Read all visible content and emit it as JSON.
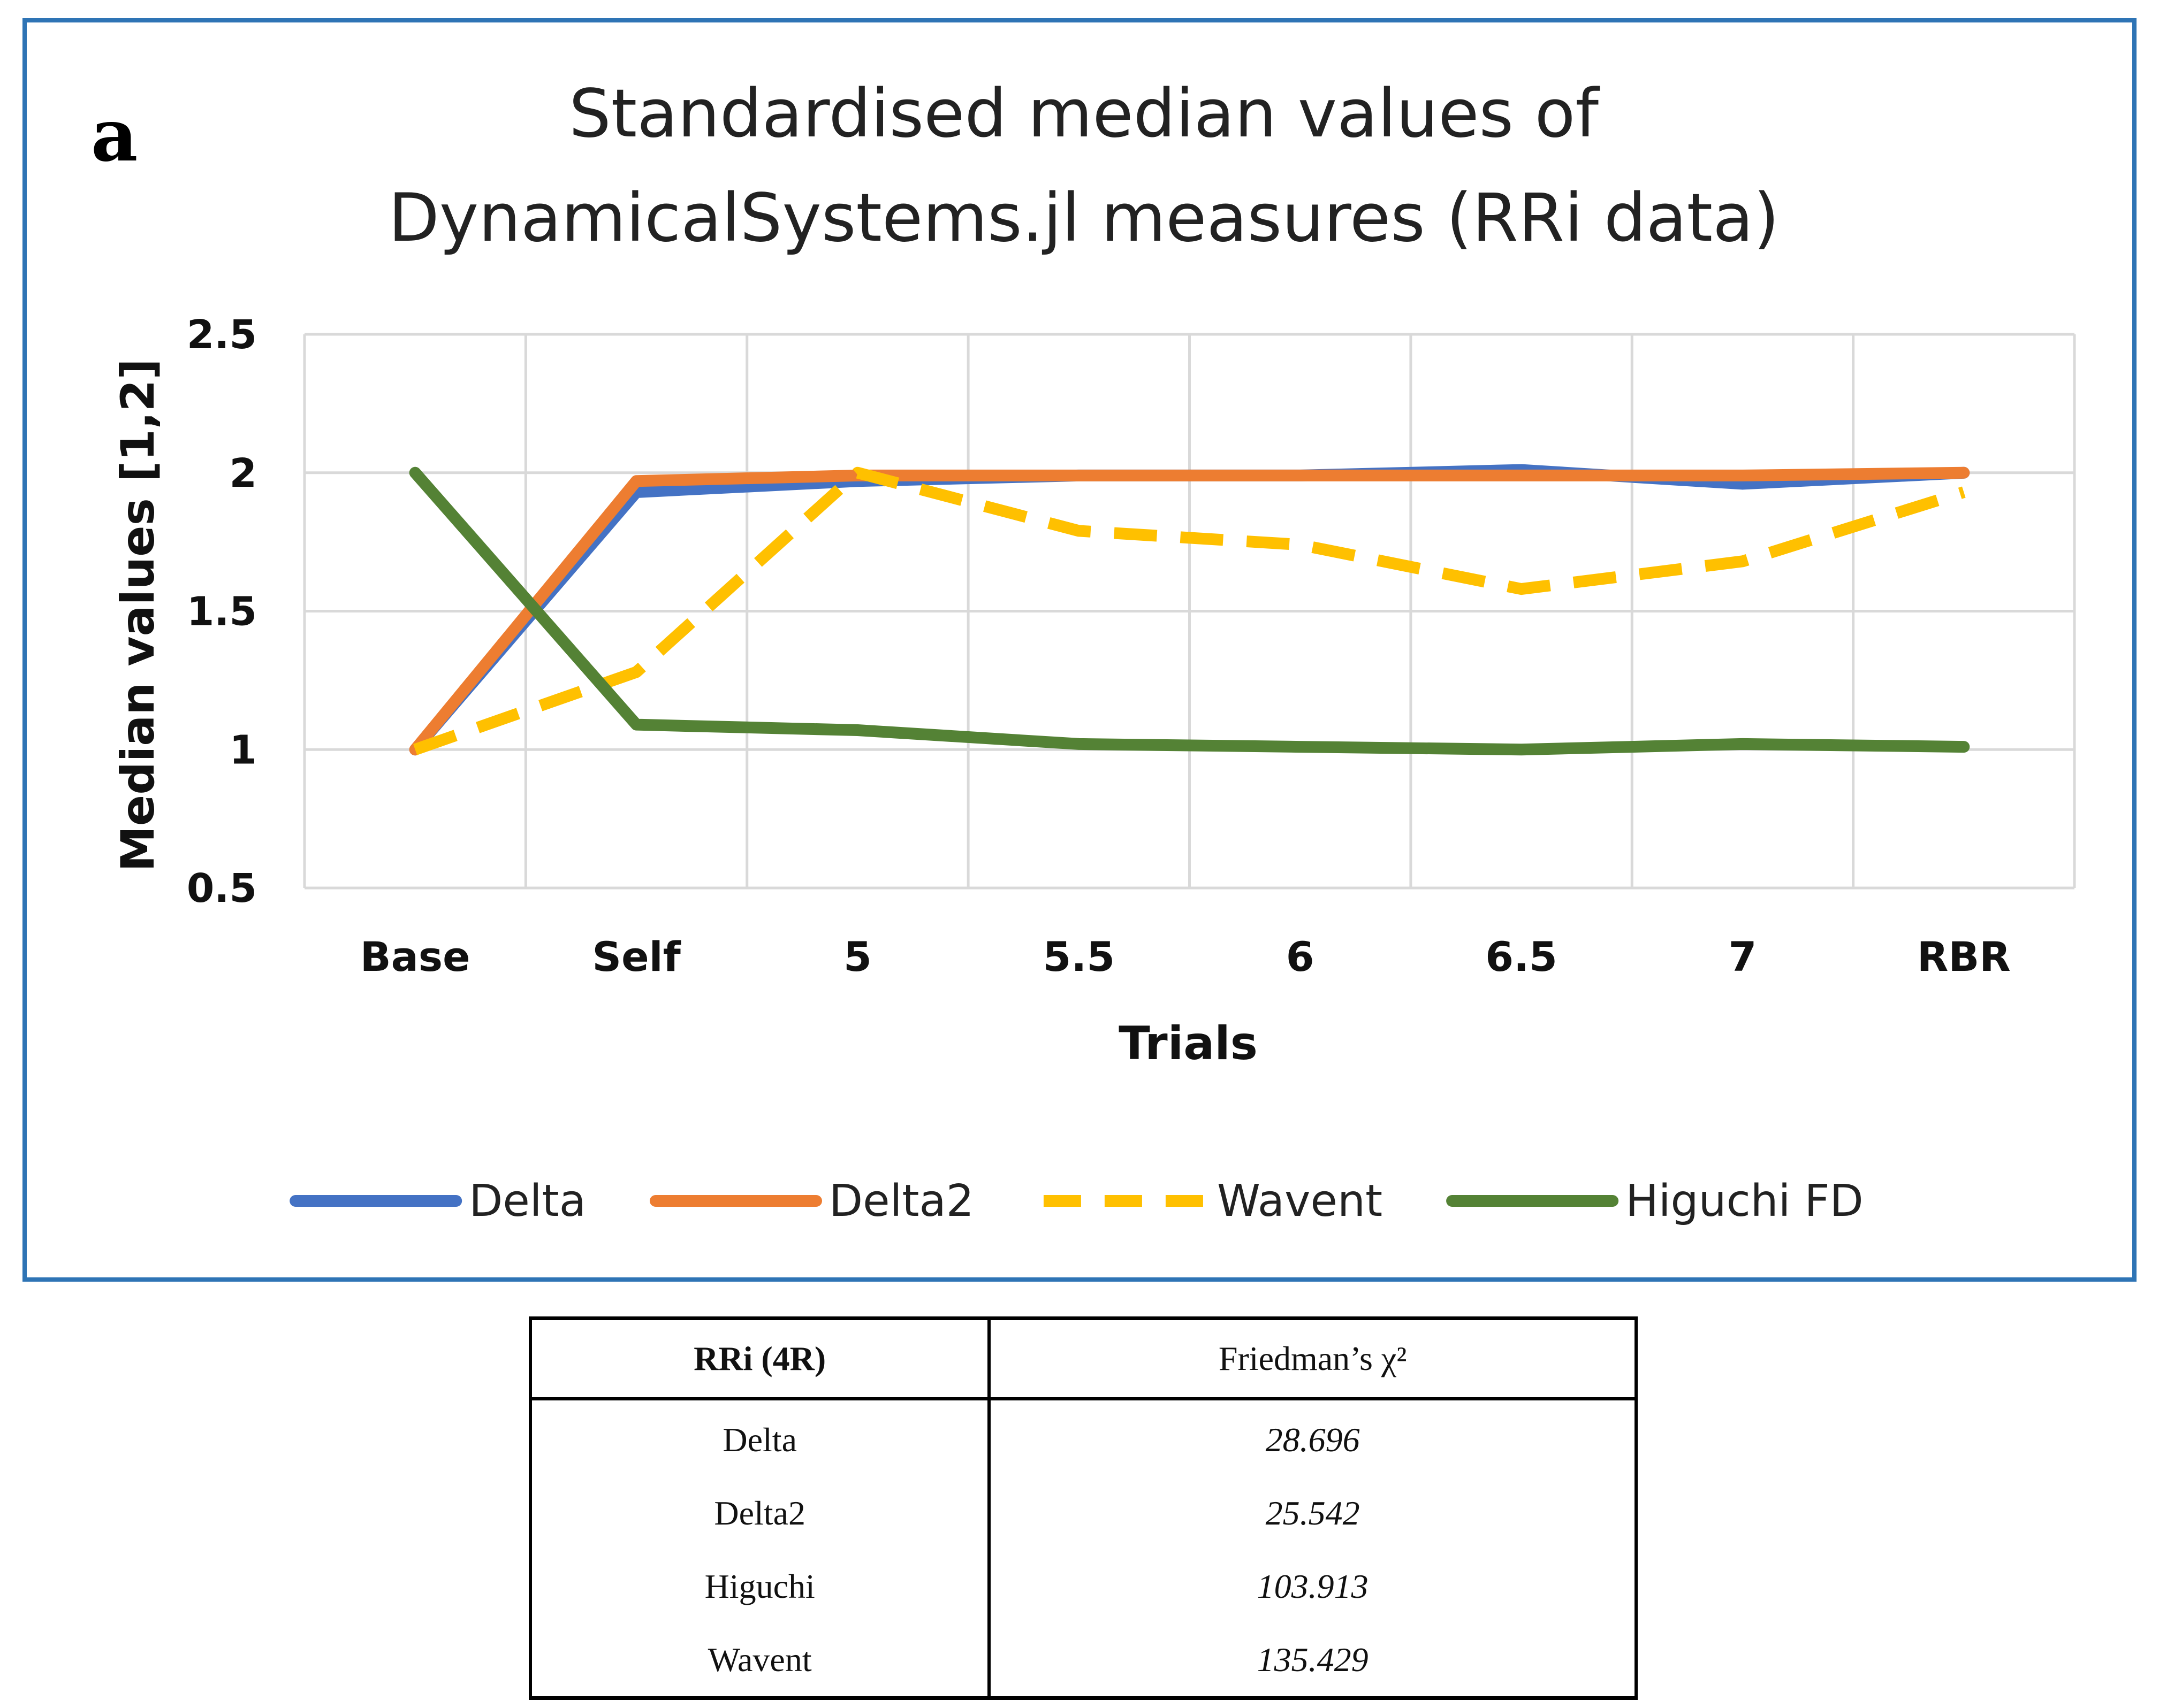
{
  "panel_letter": "a",
  "chart_data": {
    "type": "line",
    "title_line1": "Standardised median values of",
    "title_line2": "DynamicalSystems.jl measures (RRi data)",
    "xlabel": "Trials",
    "ylabel": "Median values [1,2]",
    "categories": [
      "Base",
      "Self",
      "5",
      "5.5",
      "6",
      "6.5",
      "7",
      "RBR"
    ],
    "ylim": [
      0.5,
      2.5
    ],
    "yticks": [
      0.5,
      1,
      1.5,
      2,
      2.5
    ],
    "ytick_labels": [
      "0.5",
      "1",
      "1.5",
      "2",
      "2.5"
    ],
    "grid": true,
    "legend_position": "bottom",
    "series": [
      {
        "name": "Delta",
        "color": "#4472c4",
        "dash": false,
        "values": [
          1.0,
          1.93,
          1.97,
          1.99,
          1.99,
          2.01,
          1.96,
          2.0
        ]
      },
      {
        "name": "Delta2",
        "color": "#ed7d31",
        "dash": false,
        "values": [
          1.0,
          1.97,
          1.99,
          1.99,
          1.99,
          1.99,
          1.99,
          2.0
        ]
      },
      {
        "name": "Wavent",
        "color": "#ffc000",
        "dash": true,
        "values": [
          1.0,
          1.28,
          2.0,
          1.79,
          1.74,
          1.58,
          1.68,
          1.93
        ]
      },
      {
        "name": "Higuchi FD",
        "color": "#548235",
        "dash": false,
        "values": [
          2.0,
          1.09,
          1.07,
          1.02,
          1.01,
          1.0,
          1.02,
          1.01
        ]
      }
    ]
  },
  "table": {
    "header_left": "RRi (4R)",
    "header_right": "Friedman’s χ²",
    "rows": [
      {
        "label": "Delta",
        "value": "28.696"
      },
      {
        "label": "Delta2",
        "value": "25.542"
      },
      {
        "label": "Higuchi",
        "value": "103.913"
      },
      {
        "label": "Wavent",
        "value": "135.429"
      }
    ]
  }
}
